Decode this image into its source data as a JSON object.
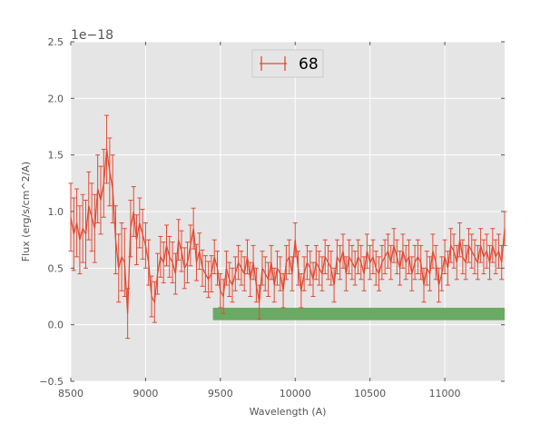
{
  "chart_data": {
    "type": "line",
    "title": "",
    "xlabel": "Wavelength (A)",
    "ylabel": "Flux (erg/s/cm^2/A)",
    "y_offset_label": "1e−18",
    "xlim": [
      8500,
      11400
    ],
    "ylim": [
      -0.5,
      2.5
    ],
    "x_ticks": [
      8500,
      9000,
      9500,
      10000,
      10500,
      11000
    ],
    "x_tick_labels": [
      "8500",
      "9000",
      "9500",
      "10000",
      "10500",
      "11000"
    ],
    "y_ticks": [
      -0.5,
      0.0,
      0.5,
      1.0,
      1.5,
      2.0,
      2.5
    ],
    "y_tick_labels": [
      "−0.5",
      "0.0",
      "0.5",
      "1.0",
      "1.5",
      "2.0",
      "2.5"
    ],
    "grid": true,
    "legend_position": "top-center",
    "background_color": "#e5e5e5",
    "series": [
      {
        "name": "68",
        "color": "#e24a33",
        "style": "errorbar-line",
        "x": [
          8500,
          8520,
          8540,
          8560,
          8580,
          8600,
          8620,
          8640,
          8660,
          8680,
          8700,
          8720,
          8740,
          8760,
          8780,
          8800,
          8820,
          8840,
          8860,
          8880,
          8900,
          8920,
          8940,
          8960,
          8980,
          9000,
          9020,
          9040,
          9060,
          9080,
          9100,
          9120,
          9140,
          9160,
          9180,
          9200,
          9220,
          9240,
          9260,
          9280,
          9300,
          9320,
          9340,
          9360,
          9380,
          9400,
          9420,
          9440,
          9460,
          9480,
          9500,
          9520,
          9540,
          9560,
          9580,
          9600,
          9620,
          9640,
          9660,
          9680,
          9700,
          9720,
          9740,
          9760,
          9780,
          9800,
          9820,
          9840,
          9860,
          9880,
          9900,
          9920,
          9940,
          9960,
          9980,
          10000,
          10020,
          10040,
          10060,
          10080,
          10100,
          10120,
          10140,
          10160,
          10180,
          10200,
          10220,
          10240,
          10260,
          10280,
          10300,
          10320,
          10340,
          10360,
          10380,
          10400,
          10420,
          10440,
          10460,
          10480,
          10500,
          10520,
          10540,
          10560,
          10580,
          10600,
          10620,
          10640,
          10660,
          10680,
          10700,
          10720,
          10740,
          10760,
          10780,
          10800,
          10820,
          10840,
          10860,
          10880,
          10900,
          10920,
          10940,
          10960,
          10980,
          11000,
          11020,
          11040,
          11060,
          11080,
          11100,
          11120,
          11140,
          11160,
          11180,
          11200,
          11220,
          11240,
          11260,
          11280,
          11300,
          11320,
          11340,
          11360,
          11380,
          11400
        ],
        "y": [
          0.95,
          0.8,
          0.9,
          0.75,
          0.85,
          0.8,
          1.05,
          0.95,
          0.85,
          1.2,
          1.1,
          1.25,
          1.55,
          1.35,
          1.2,
          0.75,
          0.5,
          0.6,
          0.55,
          0.1,
          0.85,
          1.0,
          0.75,
          0.9,
          0.8,
          0.7,
          0.55,
          0.25,
          0.2,
          0.45,
          0.6,
          0.55,
          0.7,
          0.6,
          0.55,
          0.45,
          0.75,
          0.65,
          0.5,
          0.55,
          0.7,
          0.85,
          0.55,
          0.65,
          0.5,
          0.45,
          0.4,
          0.45,
          0.6,
          0.5,
          0.3,
          0.25,
          0.5,
          0.4,
          0.35,
          0.45,
          0.55,
          0.5,
          0.45,
          0.6,
          0.4,
          0.55,
          0.35,
          0.2,
          0.5,
          0.45,
          0.4,
          0.55,
          0.35,
          0.5,
          0.45,
          0.3,
          0.55,
          0.6,
          0.45,
          0.75,
          0.5,
          0.3,
          0.45,
          0.55,
          0.5,
          0.4,
          0.55,
          0.5,
          0.45,
          0.6,
          0.55,
          0.5,
          0.35,
          0.6,
          0.55,
          0.65,
          0.45,
          0.6,
          0.55,
          0.5,
          0.6,
          0.55,
          0.45,
          0.65,
          0.55,
          0.6,
          0.5,
          0.45,
          0.55,
          0.6,
          0.65,
          0.55,
          0.7,
          0.6,
          0.5,
          0.65,
          0.55,
          0.6,
          0.45,
          0.55,
          0.6,
          0.55,
          0.35,
          0.5,
          0.45,
          0.65,
          0.55,
          0.35,
          0.45,
          0.6,
          0.5,
          0.7,
          0.65,
          0.55,
          0.75,
          0.6,
          0.55,
          0.7,
          0.65,
          0.6,
          0.55,
          0.7,
          0.6,
          0.65,
          0.55,
          0.7,
          0.6,
          0.65,
          0.55,
          0.85
        ],
        "yerr": [
          0.3,
          0.32,
          0.3,
          0.3,
          0.3,
          0.3,
          0.3,
          0.3,
          0.3,
          0.3,
          0.3,
          0.3,
          0.3,
          0.3,
          0.3,
          0.3,
          0.3,
          0.3,
          0.3,
          0.22,
          0.25,
          0.22,
          0.22,
          0.22,
          0.22,
          0.2,
          0.2,
          0.18,
          0.18,
          0.18,
          0.18,
          0.18,
          0.18,
          0.18,
          0.18,
          0.18,
          0.18,
          0.18,
          0.18,
          0.18,
          0.18,
          0.18,
          0.16,
          0.16,
          0.16,
          0.16,
          0.16,
          0.16,
          0.15,
          0.15,
          0.15,
          0.15,
          0.15,
          0.15,
          0.15,
          0.15,
          0.15,
          0.15,
          0.15,
          0.15,
          0.15,
          0.15,
          0.15,
          0.15,
          0.15,
          0.15,
          0.15,
          0.15,
          0.15,
          0.15,
          0.15,
          0.15,
          0.15,
          0.15,
          0.15,
          0.15,
          0.15,
          0.15,
          0.15,
          0.15,
          0.15,
          0.15,
          0.15,
          0.15,
          0.15,
          0.15,
          0.15,
          0.15,
          0.15,
          0.15,
          0.15,
          0.15,
          0.15,
          0.15,
          0.15,
          0.15,
          0.15,
          0.15,
          0.15,
          0.15,
          0.15,
          0.15,
          0.15,
          0.15,
          0.15,
          0.15,
          0.15,
          0.15,
          0.15,
          0.15,
          0.15,
          0.15,
          0.15,
          0.15,
          0.15,
          0.15,
          0.15,
          0.15,
          0.15,
          0.15,
          0.15,
          0.15,
          0.15,
          0.15,
          0.15,
          0.15,
          0.15,
          0.15,
          0.15,
          0.15,
          0.15,
          0.15,
          0.15,
          0.15,
          0.15,
          0.15,
          0.15,
          0.15,
          0.15,
          0.15,
          0.15,
          0.15,
          0.15,
          0.15,
          0.15,
          0.15
        ]
      }
    ],
    "regions": [
      {
        "x_range": [
          9450,
          11400
        ],
        "y_range": [
          0.04,
          0.15
        ],
        "color": "#6aaa64"
      }
    ]
  }
}
